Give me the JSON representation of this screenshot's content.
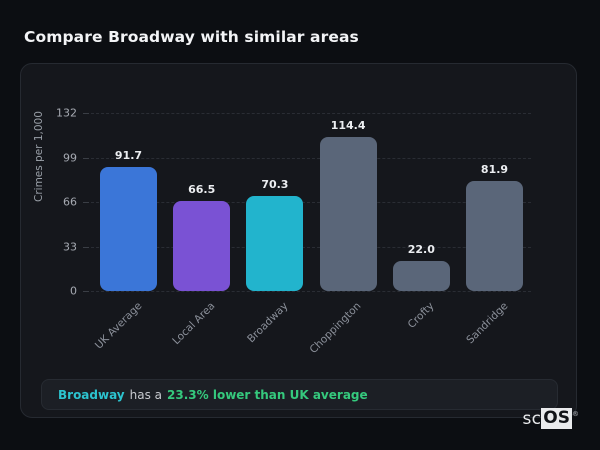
{
  "title": "Compare Broadway with similar areas",
  "chart_data": {
    "type": "bar",
    "categories": [
      "UK Average",
      "Local Area",
      "Broadway",
      "Choppington",
      "Crofty",
      "Sandridge"
    ],
    "values": [
      91.7,
      66.5,
      70.3,
      114.4,
      22.0,
      81.9
    ],
    "value_labels": [
      "91.7",
      "66.5",
      "70.3",
      "114.4",
      "22.0",
      "81.9"
    ],
    "bar_colors": [
      "#3b76d8",
      "#7a52d4",
      "#22b4cd",
      "#5a6679",
      "#5a6679",
      "#5a6679"
    ],
    "title": "",
    "xlabel": "",
    "ylabel": "Crimes per 1,000",
    "ylim": [
      0,
      132
    ],
    "yticks": [
      0,
      33,
      66,
      99,
      132
    ],
    "grid": "horizontal-dashed",
    "legend": "none"
  },
  "note": {
    "area": "Broadway",
    "middle": "has a",
    "stat": "23.3% lower than UK average",
    "area_color": "#2cc3cf",
    "stat_color": "#35c97d"
  },
  "logo": {
    "prefix": "sc",
    "suffix": "OS",
    "registered_mark": "®"
  },
  "colors": {
    "page_background": "#0c0e12",
    "card_background": "#15171c",
    "card_border": "#262a31",
    "grid": "#2a2d34",
    "value_label": "#eceef1",
    "tick_label": "#a6aab2",
    "category_label": "#8b909a"
  }
}
